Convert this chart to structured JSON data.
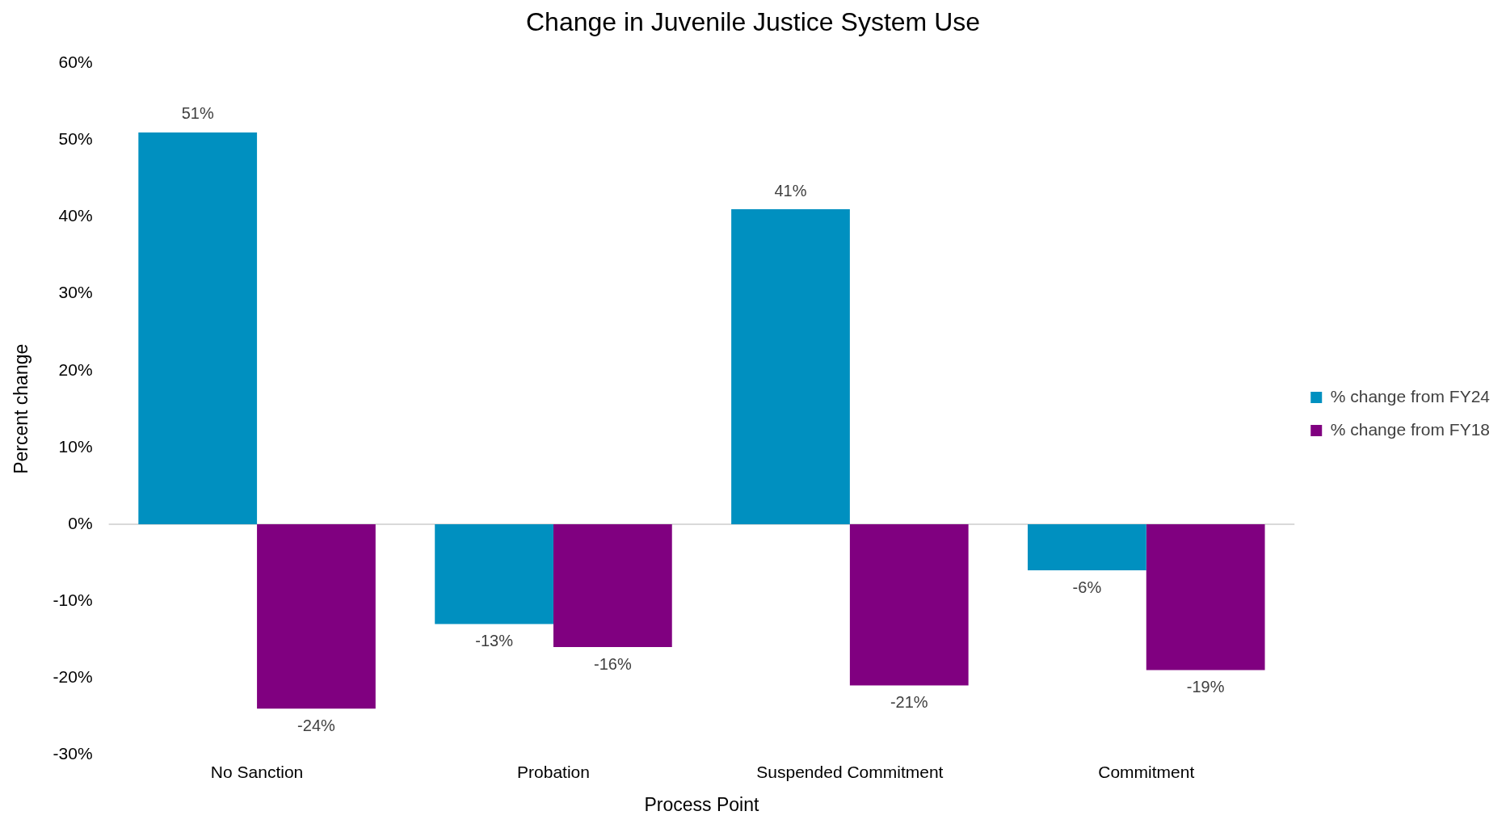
{
  "chart_data": {
    "type": "bar",
    "title": "Change in Juvenile Justice System Use",
    "xlabel": "Process Point",
    "ylabel": "Percent change",
    "categories": [
      "No Sanction",
      "Probation",
      "Suspended Commitment",
      "Commitment"
    ],
    "series": [
      {
        "name": "% change from FY24",
        "color": "#0090c0",
        "values": [
          51,
          -13,
          41,
          -6
        ],
        "value_labels": [
          "51%",
          "-13%",
          "41%",
          "-6%"
        ]
      },
      {
        "name": "% change from FY18",
        "color": "#800080",
        "values": [
          -24,
          -16,
          -21,
          -19
        ],
        "value_labels": [
          "-24%",
          "-16%",
          "-21%",
          "-19%"
        ]
      }
    ],
    "ylim": [
      -30,
      60
    ],
    "yticks": [
      {
        "value": -30,
        "label": "-30%"
      },
      {
        "value": -20,
        "label": "-20%"
      },
      {
        "value": -10,
        "label": "-10%"
      },
      {
        "value": 0,
        "label": "0%"
      },
      {
        "value": 10,
        "label": "10%"
      },
      {
        "value": 20,
        "label": "20%"
      },
      {
        "value": 30,
        "label": "30%"
      },
      {
        "value": 40,
        "label": "40%"
      },
      {
        "value": 50,
        "label": "50%"
      },
      {
        "value": 60,
        "label": "60%"
      }
    ],
    "ref_lines": [
      {
        "axis": "y",
        "value": 0,
        "color": "#d9d9d9"
      }
    ],
    "grid": false,
    "legend": "right"
  }
}
